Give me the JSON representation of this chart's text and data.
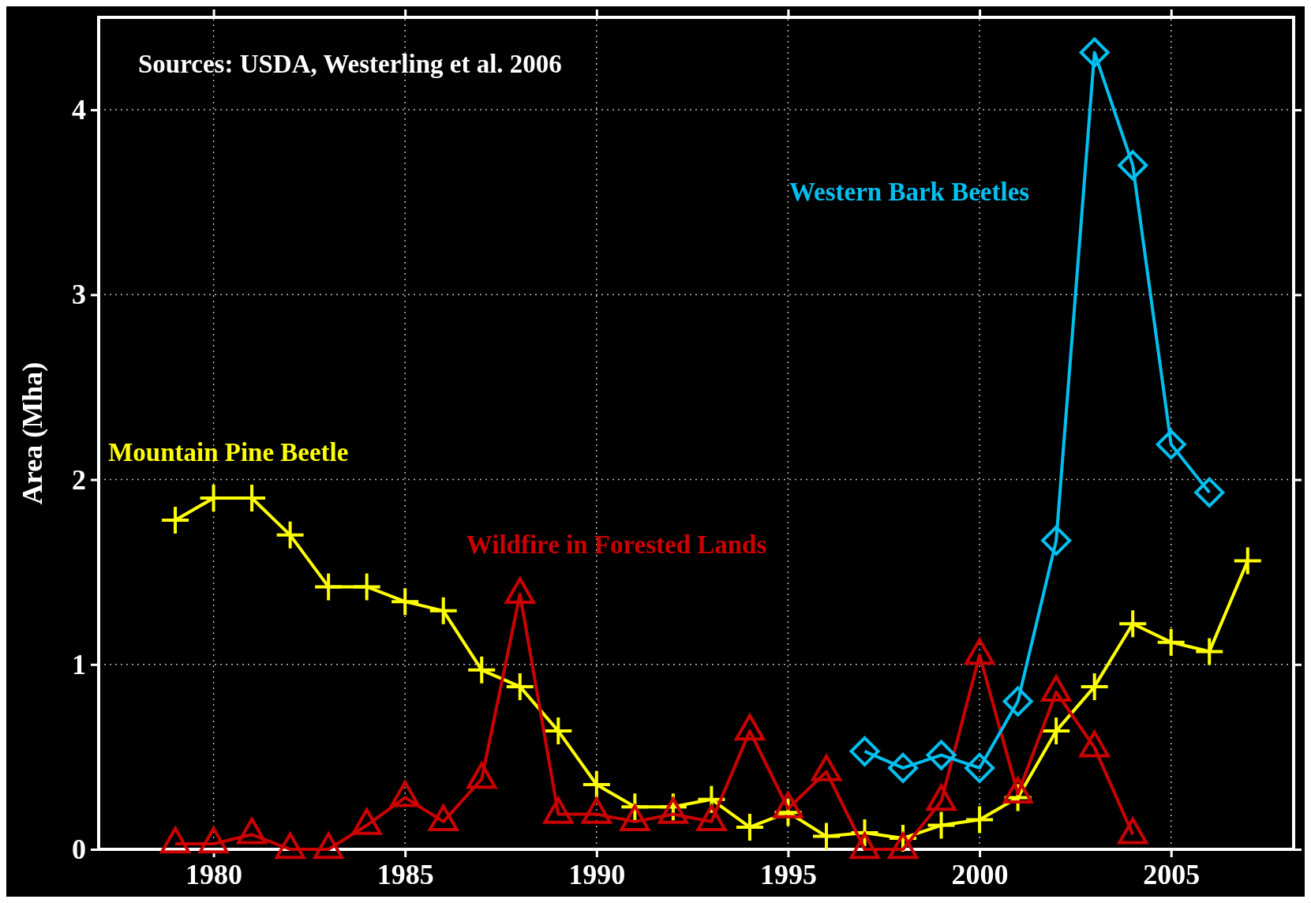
{
  "chart_data": {
    "type": "line",
    "ylabel": "Area (Mha)",
    "annotations": [
      "Sources: USDA, Westerling et al. 2006"
    ],
    "x": [
      1979,
      1980,
      1981,
      1982,
      1983,
      1984,
      1985,
      1986,
      1987,
      1988,
      1989,
      1990,
      1991,
      1992,
      1993,
      1994,
      1995,
      1996,
      1997,
      1998,
      1999,
      2000,
      2001,
      2002,
      2003,
      2004,
      2005,
      2006,
      2007
    ],
    "xlim": [
      1977,
      2008.2
    ],
    "xticks": [
      1980,
      1985,
      1990,
      1995,
      2000,
      2005
    ],
    "ylim": [
      0,
      4.5
    ],
    "yticks": [
      0,
      1,
      2,
      3,
      4
    ],
    "grid": true,
    "series": [
      {
        "name": "Mountain Pine Beetle",
        "color": "#ffff00",
        "marker": "cross",
        "values": [
          1.78,
          1.9,
          1.9,
          1.7,
          1.42,
          1.42,
          1.34,
          1.29,
          0.97,
          0.88,
          0.64,
          0.35,
          0.23,
          0.23,
          0.27,
          0.12,
          0.2,
          0.07,
          0.09,
          0.06,
          0.13,
          0.16,
          0.28,
          0.64,
          0.88,
          1.22,
          1.12,
          1.07,
          1.56
        ]
      },
      {
        "name": "Wildfire in Forested Lands",
        "color": "#cc0000",
        "marker": "triangle",
        "values": [
          0.03,
          0.03,
          0.08,
          0,
          0,
          0.13,
          0.28,
          0.15,
          0.38,
          1.38,
          0.19,
          0.19,
          0.15,
          0.19,
          0.15,
          0.64,
          0.22,
          0.42,
          0,
          0,
          0.26,
          1.05,
          0.3,
          0.85,
          0.55,
          0.08,
          null,
          null,
          null
        ]
      },
      {
        "name": "Western Bark Beetles",
        "color": "#00c0f0",
        "marker": "diamond",
        "x": [
          1997,
          1998,
          1999,
          2000,
          2001,
          2002,
          2003,
          2004,
          2005,
          2006
        ],
        "values": [
          0.53,
          0.44,
          0.51,
          0.44,
          0.8,
          1.67,
          4.31,
          3.7,
          2.19,
          1.93
        ]
      }
    ]
  }
}
